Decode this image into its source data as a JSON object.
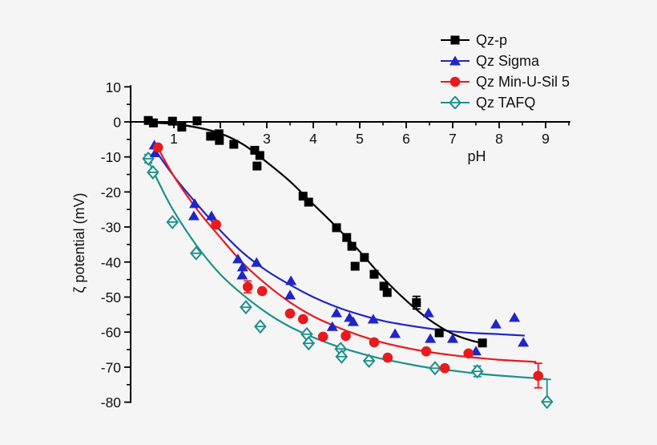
{
  "chart_data": {
    "type": "scatter",
    "title": "",
    "xlabel": "pH",
    "ylabel": "ζ potential (mV)",
    "x_range": [
      0.07,
      9.53
    ],
    "y_range": [
      -80,
      10
    ],
    "x_major_ticks": [
      1,
      2,
      3,
      4,
      5,
      6,
      7,
      8,
      9
    ],
    "x_minor_step": 0.5,
    "y_major_ticks": [
      10,
      0,
      -10,
      -20,
      -30,
      -40,
      -50,
      -60,
      -70,
      -80
    ],
    "y_minor_step": 5,
    "grid": false,
    "legend_position": "top-right",
    "background": "#f5f5f5",
    "series": [
      {
        "name": "Qz TAFQ",
        "color": "#1c918c",
        "marker": "diamond-open",
        "points": [
          [
            0.45,
            -10.5
          ],
          [
            0.55,
            -14.4
          ],
          [
            0.97,
            -28.6
          ],
          [
            1.48,
            -37.5
          ],
          [
            2.55,
            -52.9
          ],
          [
            2.86,
            -58.4
          ],
          [
            3.86,
            -60.6
          ],
          [
            3.9,
            -63.2
          ],
          [
            4.59,
            -64.8
          ],
          [
            4.61,
            -67.0
          ],
          [
            5.2,
            -68.2
          ],
          [
            6.62,
            -70.3
          ],
          [
            7.53,
            -71.2
          ],
          [
            9.03,
            -79.9
          ]
        ],
        "error_bars": [
          {
            "x": 0.45,
            "y": -10.5,
            "up": 1.2,
            "down": 1.2
          },
          {
            "x": 7.53,
            "y": -71.2,
            "up": 1.5,
            "down": 1.5
          },
          {
            "x": 9.03,
            "y": -79.9,
            "up": 6.4,
            "down": 0
          }
        ],
        "trend": [
          [
            0.45,
            -11
          ],
          [
            0.7,
            -18
          ],
          [
            1,
            -25.5
          ],
          [
            1.5,
            -35.5
          ],
          [
            2,
            -43.5
          ],
          [
            2.5,
            -49.5
          ],
          [
            3,
            -54.5
          ],
          [
            3.5,
            -58.5
          ],
          [
            4,
            -61.5
          ],
          [
            4.5,
            -64
          ],
          [
            5,
            -66
          ],
          [
            5.5,
            -67.7
          ],
          [
            6,
            -69
          ],
          [
            6.5,
            -70.2
          ],
          [
            7,
            -71
          ],
          [
            7.5,
            -71.8
          ],
          [
            8,
            -72.4
          ],
          [
            9.03,
            -73.4
          ]
        ]
      },
      {
        "name": "Qz Sigma",
        "color": "#2025c8",
        "marker": "triangle",
        "points": [
          [
            0.58,
            -6.6
          ],
          [
            0.6,
            -8.8
          ],
          [
            1.45,
            -23.3
          ],
          [
            1.43,
            -26.8
          ],
          [
            1.81,
            -26.8
          ],
          [
            2.38,
            -39.1
          ],
          [
            2.48,
            -41.4
          ],
          [
            2.47,
            -43.7
          ],
          [
            2.78,
            -40.1
          ],
          [
            3.52,
            -45.3
          ],
          [
            3.5,
            -49.4
          ],
          [
            4.41,
            -58.4
          ],
          [
            4.5,
            -54.5
          ],
          [
            4.78,
            -55.8
          ],
          [
            4.86,
            -57.0
          ],
          [
            5.29,
            -56.3
          ],
          [
            5.76,
            -60.4
          ],
          [
            6.48,
            -54.5
          ],
          [
            6.52,
            -61.8
          ],
          [
            7.0,
            -61.8
          ],
          [
            7.5,
            -65.4
          ],
          [
            7.93,
            -57.7
          ],
          [
            8.33,
            -55.8
          ],
          [
            8.52,
            -62.9
          ]
        ],
        "error_bars": [],
        "trend": [
          [
            0.57,
            -7.5
          ],
          [
            1,
            -15.5
          ],
          [
            1.5,
            -23.5
          ],
          [
            2,
            -31
          ],
          [
            2.5,
            -37.5
          ],
          [
            3,
            -42.5
          ],
          [
            3.5,
            -46.5
          ],
          [
            4,
            -50
          ],
          [
            4.5,
            -52.8
          ],
          [
            5,
            -55
          ],
          [
            5.5,
            -56.8
          ],
          [
            6,
            -58
          ],
          [
            6.5,
            -59
          ],
          [
            7,
            -59.8
          ],
          [
            7.5,
            -60.3
          ],
          [
            8,
            -60.6
          ],
          [
            8.55,
            -61
          ]
        ]
      },
      {
        "name": "Qz Min-U-Sil 5",
        "color": "#e81a1d",
        "marker": "circle",
        "points": [
          [
            0.66,
            -7.3
          ],
          [
            1.91,
            -29.3
          ],
          [
            2.59,
            -47.1
          ],
          [
            2.9,
            -48.3
          ],
          [
            3.5,
            -54.7
          ],
          [
            3.78,
            -56.3
          ],
          [
            4.21,
            -61.3
          ],
          [
            4.7,
            -61.1
          ],
          [
            5.31,
            -62.9
          ],
          [
            5.6,
            -67.3
          ],
          [
            6.43,
            -65.5
          ],
          [
            6.83,
            -70.3
          ],
          [
            7.34,
            -66.1
          ],
          [
            8.84,
            -72.5
          ]
        ],
        "error_bars": [
          {
            "x": 2.59,
            "y": -47.1,
            "up": 1.7,
            "down": 1.7
          },
          {
            "x": 8.84,
            "y": -72.5,
            "up": 3.6,
            "down": 3.4
          }
        ],
        "trend": [
          [
            0.66,
            -7.5
          ],
          [
            1,
            -15.5
          ],
          [
            1.5,
            -25
          ],
          [
            2,
            -33
          ],
          [
            2.5,
            -40.5
          ],
          [
            3,
            -46.5
          ],
          [
            3.5,
            -51.5
          ],
          [
            4,
            -55.5
          ],
          [
            4.5,
            -58.5
          ],
          [
            5,
            -61
          ],
          [
            5.5,
            -63
          ],
          [
            6,
            -64.5
          ],
          [
            6.5,
            -65.7
          ],
          [
            7,
            -66.6
          ],
          [
            7.5,
            -67.3
          ],
          [
            8,
            -67.9
          ],
          [
            8.8,
            -68.5
          ]
        ]
      },
      {
        "name": "Qz-p",
        "color": "#000000",
        "marker": "square",
        "points": [
          [
            0.45,
            0.4
          ],
          [
            0.56,
            -0.3
          ],
          [
            0.97,
            0.2
          ],
          [
            1.17,
            -1.5
          ],
          [
            1.5,
            0.3
          ],
          [
            1.79,
            -4.1
          ],
          [
            1.97,
            -3.4
          ],
          [
            1.98,
            -5.3
          ],
          [
            2.29,
            -6.4
          ],
          [
            2.74,
            -8.1
          ],
          [
            2.85,
            -9.6
          ],
          [
            2.79,
            -12.6
          ],
          [
            3.78,
            -21.2
          ],
          [
            3.9,
            -22.9
          ],
          [
            4.5,
            -30.2
          ],
          [
            4.72,
            -33.0
          ],
          [
            4.83,
            -35.5
          ],
          [
            4.9,
            -41.2
          ],
          [
            5.1,
            -38.7
          ],
          [
            5.31,
            -43.5
          ],
          [
            5.52,
            -46.9
          ],
          [
            5.59,
            -48.7
          ],
          [
            6.22,
            -51.6
          ],
          [
            6.71,
            -60.2
          ],
          [
            7.64,
            -63.1
          ]
        ],
        "error_bars": [
          {
            "x": 6.22,
            "y": -51.6,
            "up": 1.8,
            "down": 1.8
          }
        ],
        "trend": [
          [
            0.45,
            -0.2
          ],
          [
            1,
            -0.6
          ],
          [
            1.5,
            -1.6
          ],
          [
            2,
            -3.3
          ],
          [
            2.5,
            -6.5
          ],
          [
            3,
            -11.5
          ],
          [
            3.5,
            -17
          ],
          [
            4,
            -23.5
          ],
          [
            4.5,
            -30
          ],
          [
            5,
            -37
          ],
          [
            5.5,
            -44.5
          ],
          [
            6,
            -51
          ],
          [
            6.5,
            -56.5
          ],
          [
            7,
            -60.5
          ],
          [
            7.4,
            -62.4
          ],
          [
            7.64,
            -63.1
          ]
        ]
      }
    ],
    "legend": [
      "Qz-p",
      "Qz Sigma",
      "Qz Min-U-Sil 5",
      "Qz TAFQ"
    ]
  }
}
